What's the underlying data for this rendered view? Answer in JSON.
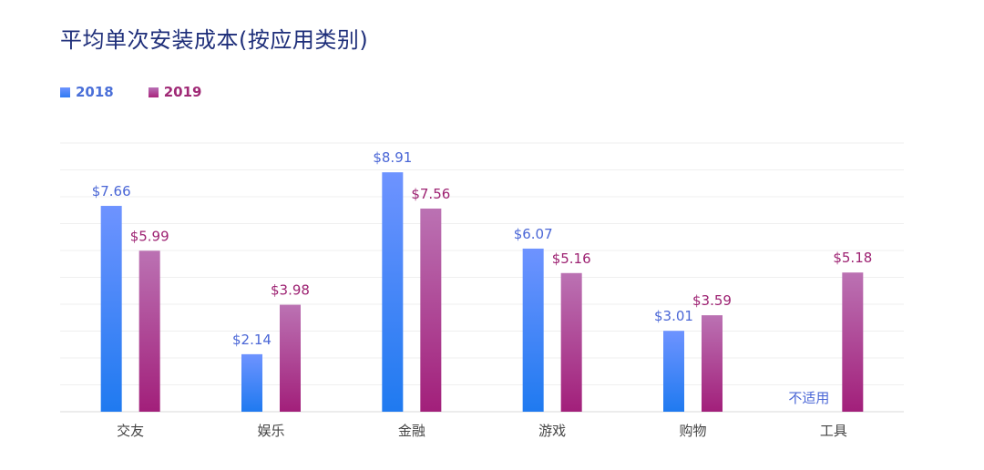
{
  "chart_data": {
    "type": "bar",
    "title": "平均单次安装成本(按应用类别)",
    "xlabel": "",
    "ylabel": "",
    "ylim": [
      0,
      10
    ],
    "grid": true,
    "legend_position": "top-left",
    "categories": [
      "交友",
      "娱乐",
      "金融",
      "游戏",
      "购物",
      "工具"
    ],
    "series": [
      {
        "name": "2018",
        "color": "#3f82f6",
        "values": [
          7.66,
          2.14,
          8.91,
          6.07,
          3.01,
          null
        ],
        "labels": [
          "$7.66",
          "$2.14",
          "$8.91",
          "$6.07",
          "$3.01",
          "不适用"
        ]
      },
      {
        "name": "2019",
        "color": "#a52a7d",
        "values": [
          5.99,
          3.98,
          7.56,
          5.16,
          3.59,
          5.18
        ],
        "labels": [
          "$5.99",
          "$3.98",
          "$7.56",
          "$5.16",
          "$3.59",
          "$5.18"
        ]
      }
    ]
  }
}
